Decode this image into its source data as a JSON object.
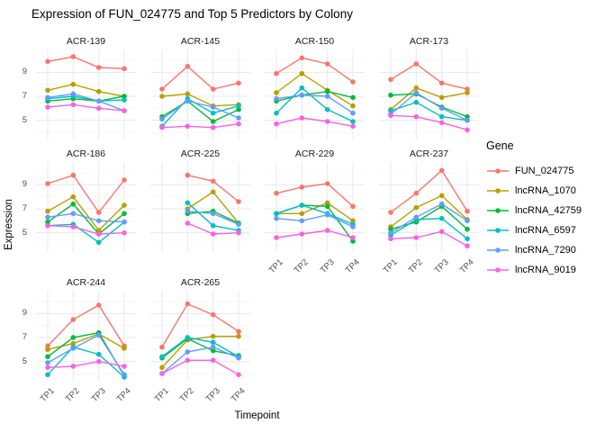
{
  "chart_data": {
    "type": "line",
    "title": "Expression of FUN_024775 and Top 5 Predictors by Colony",
    "xlabel": "Timepoint",
    "ylabel": "Expression",
    "legend_title": "Gene",
    "legend_position": "right",
    "grid": true,
    "x_categories": [
      "TP1",
      "TP2",
      "TP3",
      "TP4"
    ],
    "y_ticks": [
      9,
      7,
      5
    ],
    "y_minor_ticks": [
      10,
      8,
      6,
      4
    ],
    "ylim": [
      3.4,
      10.9
    ],
    "colors": {
      "grid_major": "#e8e8e8",
      "grid_minor": "#f4f4f4",
      "tick_text": "#4d4d4d",
      "title_text": "#000000"
    },
    "genes": [
      {
        "name": "FUN_024775",
        "color": "#F8766D"
      },
      {
        "name": "lncRNA_1070",
        "color": "#B79F00"
      },
      {
        "name": "lncRNA_42759",
        "color": "#00BA38"
      },
      {
        "name": "lncRNA_6597",
        "color": "#00BFC4"
      },
      {
        "name": "lncRNA_7290",
        "color": "#619CFF"
      },
      {
        "name": "lncRNA_9019",
        "color": "#F564E3"
      }
    ],
    "facets": [
      {
        "label": "ACR-139",
        "row": 0,
        "col": 0,
        "show_x_labels": false,
        "show_y_labels": true,
        "values": {
          "FUN_024775": [
            9.9,
            10.3,
            9.4,
            9.3
          ],
          "lncRNA_1070": [
            7.5,
            8.0,
            7.4,
            7.0
          ],
          "lncRNA_42759": [
            6.6,
            6.8,
            6.6,
            7.0
          ],
          "lncRNA_6597": [
            6.8,
            7.0,
            6.6,
            6.7
          ],
          "lncRNA_7290": [
            6.9,
            7.2,
            6.6,
            5.8
          ],
          "lncRNA_9019": [
            6.1,
            6.3,
            6.0,
            5.8
          ]
        }
      },
      {
        "label": "ACR-145",
        "row": 0,
        "col": 1,
        "show_x_labels": false,
        "show_y_labels": false,
        "values": {
          "FUN_024775": [
            7.6,
            9.5,
            7.6,
            8.1
          ],
          "lncRNA_1070": [
            7.0,
            7.2,
            6.2,
            6.3
          ],
          "lncRNA_42759": [
            5.3,
            6.6,
            4.9,
            5.9
          ],
          "lncRNA_6597": [
            4.5,
            6.8,
            5.6,
            6.2
          ],
          "lncRNA_7290": [
            5.1,
            6.6,
            6.1,
            5.2
          ],
          "lncRNA_9019": [
            4.4,
            4.5,
            4.4,
            4.7
          ]
        }
      },
      {
        "label": "ACR-150",
        "row": 0,
        "col": 2,
        "show_x_labels": false,
        "show_y_labels": false,
        "values": {
          "FUN_024775": [
            8.9,
            10.2,
            9.7,
            8.2
          ],
          "lncRNA_1070": [
            7.3,
            8.9,
            7.5,
            6.2
          ],
          "lncRNA_42759": [
            6.6,
            7.1,
            7.4,
            6.9
          ],
          "lncRNA_6597": [
            5.6,
            7.7,
            5.9,
            4.9
          ],
          "lncRNA_7290": [
            6.8,
            7.1,
            7.0,
            5.6
          ],
          "lncRNA_9019": [
            4.7,
            5.2,
            4.9,
            4.5
          ]
        }
      },
      {
        "label": "ACR-173",
        "row": 0,
        "col": 3,
        "show_x_labels": false,
        "show_y_labels": false,
        "values": {
          "FUN_024775": [
            8.4,
            9.7,
            8.1,
            7.6
          ],
          "lncRNA_1070": [
            5.9,
            7.7,
            6.9,
            7.3
          ],
          "lncRNA_42759": [
            7.1,
            7.2,
            6.1,
            5.3
          ],
          "lncRNA_6597": [
            5.8,
            6.5,
            5.3,
            5.0
          ],
          "lncRNA_7290": [
            5.5,
            7.3,
            6.0,
            5.0
          ],
          "lncRNA_9019": [
            5.4,
            5.3,
            4.8,
            4.2
          ]
        }
      },
      {
        "label": "ACR-186",
        "row": 1,
        "col": 0,
        "show_x_labels": false,
        "show_y_labels": true,
        "values": {
          "FUN_024775": [
            9.1,
            9.8,
            6.7,
            9.4
          ],
          "lncRNA_1070": [
            6.8,
            8.0,
            5.2,
            7.3
          ],
          "lncRNA_42759": [
            5.9,
            7.4,
            4.9,
            6.6
          ],
          "lncRNA_6597": [
            5.6,
            5.7,
            4.2,
            5.9
          ],
          "lncRNA_7290": [
            6.3,
            6.6,
            6.0,
            5.9
          ],
          "lncRNA_9019": [
            5.6,
            5.5,
            4.9,
            5.0
          ]
        }
      },
      {
        "label": "ACR-225",
        "row": 1,
        "col": 1,
        "show_x_labels": false,
        "show_y_labels": false,
        "values": {
          "FUN_024775": [
            null,
            9.8,
            9.3,
            7.6
          ],
          "lncRNA_1070": [
            null,
            7.0,
            8.4,
            5.8
          ],
          "lncRNA_42759": [
            null,
            6.6,
            6.8,
            5.8
          ],
          "lncRNA_6597": [
            null,
            7.5,
            5.6,
            5.2
          ],
          "lncRNA_7290": [
            null,
            6.8,
            6.6,
            5.7
          ],
          "lncRNA_9019": [
            null,
            5.8,
            4.9,
            5.0
          ]
        }
      },
      {
        "label": "ACR-229",
        "row": 1,
        "col": 2,
        "show_x_labels": true,
        "show_y_labels": false,
        "values": {
          "FUN_024775": [
            8.3,
            8.8,
            9.1,
            7.2
          ],
          "lncRNA_1070": [
            6.6,
            6.6,
            7.5,
            6.0
          ],
          "lncRNA_42759": [
            6.6,
            7.3,
            7.2,
            4.3
          ],
          "lncRNA_6597": [
            6.6,
            7.3,
            6.6,
            5.7
          ],
          "lncRNA_7290": [
            6.2,
            6.0,
            6.5,
            5.5
          ],
          "lncRNA_9019": [
            4.6,
            4.9,
            5.2,
            4.6
          ]
        }
      },
      {
        "label": "ACR-237",
        "row": 1,
        "col": 3,
        "show_x_labels": true,
        "show_y_labels": false,
        "values": {
          "FUN_024775": [
            6.7,
            8.3,
            10.2,
            6.8
          ],
          "lncRNA_1070": [
            5.5,
            7.1,
            8.1,
            6.1
          ],
          "lncRNA_42759": [
            5.3,
            5.9,
            7.2,
            5.3
          ],
          "lncRNA_6597": [
            4.8,
            6.1,
            6.2,
            4.5
          ],
          "lncRNA_7290": [
            5.0,
            6.3,
            7.4,
            6.0
          ],
          "lncRNA_9019": [
            4.5,
            4.6,
            5.1,
            3.9
          ]
        }
      },
      {
        "label": "ACR-244",
        "row": 2,
        "col": 0,
        "show_x_labels": true,
        "show_y_labels": true,
        "values": {
          "FUN_024775": [
            6.3,
            8.5,
            9.7,
            6.3
          ],
          "lncRNA_1070": [
            6.0,
            6.5,
            7.3,
            6.1
          ],
          "lncRNA_42759": [
            5.4,
            7.0,
            7.4,
            3.8
          ],
          "lncRNA_6597": [
            3.9,
            6.2,
            5.6,
            3.7
          ],
          "lncRNA_7290": [
            4.9,
            6.1,
            7.2,
            3.9
          ],
          "lncRNA_9019": [
            4.5,
            4.6,
            5.0,
            4.6
          ]
        }
      },
      {
        "label": "ACR-265",
        "row": 2,
        "col": 1,
        "show_x_labels": true,
        "show_y_labels": false,
        "values": {
          "FUN_024775": [
            6.2,
            9.8,
            8.9,
            7.5
          ],
          "lncRNA_1070": [
            4.5,
            6.8,
            7.1,
            7.1
          ],
          "lncRNA_42759": [
            5.3,
            6.9,
            5.9,
            5.5
          ],
          "lncRNA_6597": [
            5.4,
            7.0,
            6.6,
            5.4
          ],
          "lncRNA_7290": [
            4.0,
            5.8,
            6.2,
            5.3
          ],
          "lncRNA_9019": [
            4.0,
            5.1,
            5.1,
            3.9
          ]
        }
      }
    ]
  }
}
